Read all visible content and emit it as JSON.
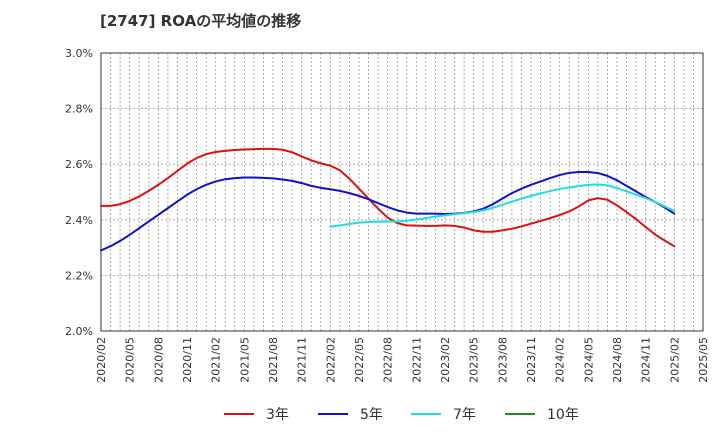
{
  "chart_data": {
    "type": "line",
    "title": "[2747]  ROAの平均値の推移",
    "xlabel": "",
    "ylabel": "",
    "ylim": [
      2.0,
      3.0
    ],
    "y_ticks": [
      2.0,
      2.2,
      2.4,
      2.6,
      2.8,
      3.0
    ],
    "y_tick_labels": [
      "2.0%",
      "2.2%",
      "2.4%",
      "2.6%",
      "2.8%",
      "3.0%"
    ],
    "x_tick_labels": [
      "2020/02",
      "2020/05",
      "2020/08",
      "2020/11",
      "2021/02",
      "2021/05",
      "2021/08",
      "2021/11",
      "2022/02",
      "2022/05",
      "2022/08",
      "2022/11",
      "2023/02",
      "2023/05",
      "2023/08",
      "2023/11",
      "2024/02",
      "2024/05",
      "2024/08",
      "2024/11",
      "2025/02",
      "2025/05"
    ],
    "grid": true,
    "legend_position": "bottom",
    "series": [
      {
        "name": "3年",
        "color": "#dd1111",
        "x": [
          "2020/02",
          "2020/03",
          "2020/04",
          "2020/05",
          "2020/06",
          "2020/07",
          "2020/08",
          "2020/09",
          "2020/10",
          "2020/11",
          "2020/12",
          "2021/01",
          "2021/02",
          "2021/03",
          "2021/04",
          "2021/05",
          "2021/06",
          "2021/07",
          "2021/08",
          "2021/09",
          "2021/10",
          "2021/11",
          "2021/12",
          "2022/01",
          "2022/02",
          "2022/03",
          "2022/04",
          "2022/05",
          "2022/06",
          "2022/07",
          "2022/08",
          "2022/09",
          "2022/10",
          "2022/11",
          "2022/12",
          "2023/01",
          "2023/02",
          "2023/03",
          "2023/04",
          "2023/05",
          "2023/06",
          "2023/07",
          "2023/08",
          "2023/09",
          "2023/10",
          "2023/11",
          "2023/12",
          "2024/01",
          "2024/02",
          "2024/03",
          "2024/04",
          "2024/05",
          "2024/06",
          "2024/07",
          "2024/08",
          "2024/09",
          "2024/10",
          "2024/11",
          "2024/12",
          "2025/01",
          "2025/02"
        ],
        "y": [
          2.45,
          2.45,
          2.456,
          2.468,
          2.484,
          2.504,
          2.526,
          2.55,
          2.576,
          2.602,
          2.622,
          2.636,
          2.644,
          2.648,
          2.651,
          2.653,
          2.654,
          2.655,
          2.655,
          2.652,
          2.643,
          2.628,
          2.614,
          2.603,
          2.595,
          2.578,
          2.548,
          2.512,
          2.476,
          2.44,
          2.408,
          2.388,
          2.38,
          2.379,
          2.378,
          2.378,
          2.38,
          2.378,
          2.372,
          2.362,
          2.357,
          2.357,
          2.362,
          2.368,
          2.376,
          2.386,
          2.396,
          2.406,
          2.417,
          2.43,
          2.448,
          2.47,
          2.478,
          2.472,
          2.452,
          2.428,
          2.402,
          2.374,
          2.347,
          2.325,
          2.305
        ]
      },
      {
        "name": "5年",
        "color": "#1111cc",
        "x": [
          "2020/02",
          "2020/03",
          "2020/04",
          "2020/05",
          "2020/06",
          "2020/07",
          "2020/08",
          "2020/09",
          "2020/10",
          "2020/11",
          "2020/12",
          "2021/01",
          "2021/02",
          "2021/03",
          "2021/04",
          "2021/05",
          "2021/06",
          "2021/07",
          "2021/08",
          "2021/09",
          "2021/10",
          "2021/11",
          "2021/12",
          "2022/01",
          "2022/02",
          "2022/03",
          "2022/04",
          "2022/05",
          "2022/06",
          "2022/07",
          "2022/08",
          "2022/09",
          "2022/10",
          "2022/11",
          "2022/12",
          "2023/01",
          "2023/02",
          "2023/03",
          "2023/04",
          "2023/05",
          "2023/06",
          "2023/07",
          "2023/08",
          "2023/09",
          "2023/10",
          "2023/11",
          "2023/12",
          "2024/01",
          "2024/02",
          "2024/03",
          "2024/04",
          "2024/05",
          "2024/06",
          "2024/07",
          "2024/08",
          "2024/09",
          "2024/10",
          "2024/11",
          "2024/12",
          "2025/01",
          "2025/02"
        ],
        "y": [
          2.29,
          2.305,
          2.324,
          2.346,
          2.37,
          2.394,
          2.418,
          2.442,
          2.466,
          2.49,
          2.51,
          2.526,
          2.538,
          2.546,
          2.55,
          2.552,
          2.552,
          2.551,
          2.549,
          2.545,
          2.54,
          2.532,
          2.522,
          2.515,
          2.51,
          2.504,
          2.496,
          2.486,
          2.474,
          2.46,
          2.446,
          2.434,
          2.426,
          2.422,
          2.422,
          2.422,
          2.421,
          2.422,
          2.425,
          2.43,
          2.44,
          2.456,
          2.476,
          2.496,
          2.512,
          2.526,
          2.538,
          2.55,
          2.561,
          2.569,
          2.572,
          2.572,
          2.568,
          2.558,
          2.542,
          2.522,
          2.502,
          2.482,
          2.464,
          2.444,
          2.422
        ]
      },
      {
        "name": "7年",
        "color": "#22dddd",
        "x": [
          "2022/02",
          "2022/03",
          "2022/04",
          "2022/05",
          "2022/06",
          "2022/07",
          "2022/08",
          "2022/09",
          "2022/10",
          "2022/11",
          "2022/12",
          "2023/01",
          "2023/02",
          "2023/03",
          "2023/04",
          "2023/05",
          "2023/06",
          "2023/07",
          "2023/08",
          "2023/09",
          "2023/10",
          "2023/11",
          "2023/12",
          "2024/01",
          "2024/02",
          "2024/03",
          "2024/04",
          "2024/05",
          "2024/06",
          "2024/07",
          "2024/08",
          "2024/09",
          "2024/10",
          "2024/11",
          "2024/12",
          "2025/01",
          "2025/02"
        ],
        "y": [
          2.375,
          2.38,
          2.385,
          2.39,
          2.392,
          2.393,
          2.394,
          2.394,
          2.396,
          2.401,
          2.406,
          2.412,
          2.416,
          2.42,
          2.424,
          2.428,
          2.434,
          2.443,
          2.454,
          2.465,
          2.476,
          2.486,
          2.495,
          2.503,
          2.511,
          2.516,
          2.521,
          2.526,
          2.527,
          2.524,
          2.514,
          2.502,
          2.49,
          2.478,
          2.464,
          2.448,
          2.432
        ]
      },
      {
        "name": "10年",
        "color": "#228822",
        "x": [],
        "y": []
      }
    ]
  }
}
